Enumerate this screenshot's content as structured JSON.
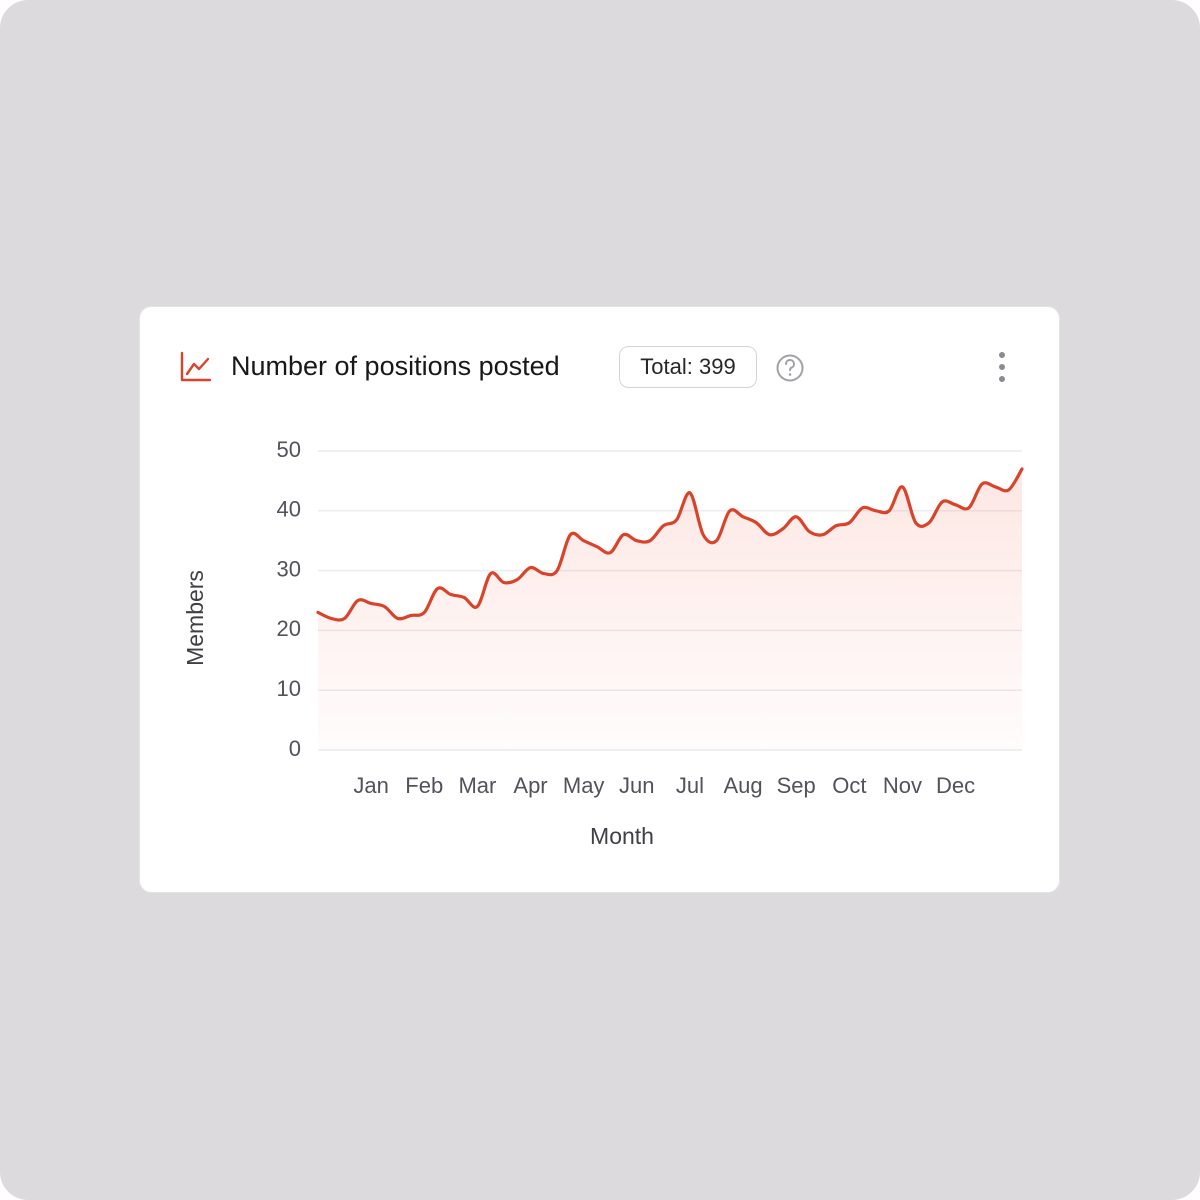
{
  "chart_data": {
    "type": "line",
    "title": "Number of positions posted",
    "badge": "Total: 399",
    "xlabel": "Month",
    "ylabel": "Members",
    "categories": [
      null,
      null,
      null,
      null,
      "Jan",
      null,
      null,
      null,
      "Feb",
      null,
      null,
      null,
      "Mar",
      null,
      null,
      null,
      "Apr",
      null,
      null,
      null,
      "May",
      null,
      null,
      null,
      "Jun",
      null,
      null,
      null,
      "Jul",
      null,
      null,
      null,
      "Aug",
      null,
      null,
      null,
      "Sep",
      null,
      null,
      null,
      "Oct",
      null,
      null,
      null,
      "Nov",
      null,
      null,
      null,
      "Dec",
      null,
      null,
      null,
      null,
      null
    ],
    "series": [
      {
        "name": "Members",
        "color": "#d8432a",
        "values": [
          23,
          22,
          22,
          25,
          24.5,
          24,
          22,
          22.5,
          23,
          27,
          26,
          25.5,
          24,
          29.5,
          28,
          28.5,
          30.5,
          29.5,
          30,
          36,
          35,
          34,
          33,
          36,
          35,
          35,
          37.5,
          38.5,
          43,
          36,
          35,
          40,
          39,
          38,
          36,
          37,
          39,
          36.5,
          36,
          37.5,
          38,
          40.5,
          40,
          40,
          44,
          38,
          38,
          41.5,
          41,
          40.5,
          44.5,
          44,
          43.5,
          47
        ]
      }
    ],
    "ylim": [
      0,
      50
    ],
    "yticks": [
      0,
      10,
      20,
      30,
      40,
      50
    ],
    "grid": true
  }
}
